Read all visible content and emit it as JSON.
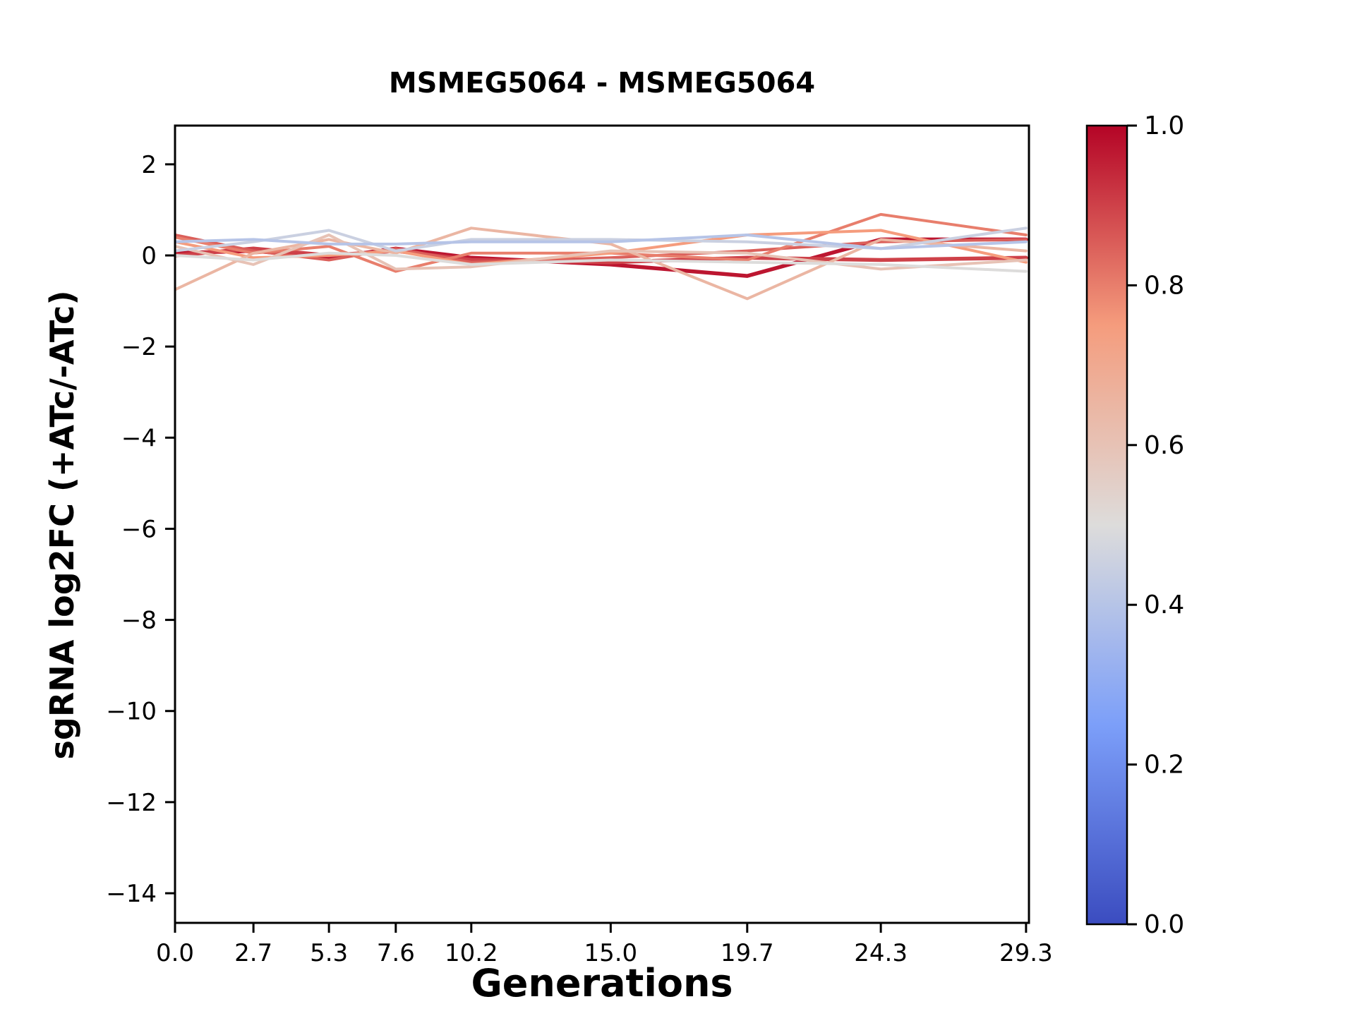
{
  "chart_data": {
    "type": "line",
    "title": "MSMEG5064 - MSMEG5064",
    "xlabel": "Generations",
    "ylabel": "sgRNA log2FC (+ATc/-ATc)",
    "x": [
      0.0,
      2.7,
      5.3,
      7.6,
      10.2,
      15.0,
      19.7,
      24.3,
      29.3
    ],
    "xtick_labels": [
      "0.0",
      "2.7",
      "5.3",
      "7.6",
      "10.2",
      "15.0",
      "19.7",
      "24.3",
      "29.3"
    ],
    "ytick_values": [
      2,
      0,
      -2,
      -4,
      -6,
      -8,
      -10,
      -12,
      -14
    ],
    "ytick_labels": [
      "2",
      "0",
      "−2",
      "−4",
      "−6",
      "−8",
      "−10",
      "−12",
      "−14"
    ],
    "xlim": [
      0,
      29.4
    ],
    "ylim": [
      -14.65,
      2.85
    ],
    "grid": false,
    "legend": "none",
    "series": [
      {
        "color_value": 0.97,
        "lw": 5.5,
        "values": [
          0.05,
          0.1,
          -0.05,
          0.15,
          -0.05,
          -0.2,
          -0.45,
          0.35,
          0.35
        ]
      },
      {
        "color_value": 0.9,
        "lw": 5.5,
        "values": [
          0.0,
          0.15,
          0.0,
          0.1,
          -0.1,
          -0.15,
          -0.05,
          -0.1,
          -0.05
        ]
      },
      {
        "color_value": 0.85,
        "lw": 4,
        "values": [
          0.45,
          0.1,
          -0.1,
          0.15,
          -0.15,
          -0.05,
          0.1,
          0.3,
          0.35
        ]
      },
      {
        "color_value": 0.8,
        "lw": 4,
        "values": [
          0.4,
          0.05,
          0.2,
          -0.35,
          0.05,
          0.05,
          -0.1,
          0.9,
          0.45
        ]
      },
      {
        "color_value": 0.75,
        "lw": 4,
        "values": [
          0.3,
          -0.05,
          0.0,
          0.1,
          -0.2,
          0.05,
          0.45,
          0.55,
          -0.15
        ]
      },
      {
        "color_value": 0.65,
        "lw": 4,
        "values": [
          -0.75,
          0.05,
          0.35,
          0.05,
          0.6,
          0.25,
          -0.95,
          0.35,
          0.1
        ]
      },
      {
        "color_value": 0.6,
        "lw": 4,
        "values": [
          0.2,
          -0.2,
          0.45,
          -0.3,
          -0.25,
          0.1,
          0.05,
          -0.3,
          -0.1
        ]
      },
      {
        "color_value": 0.5,
        "lw": 4,
        "values": [
          0.0,
          -0.1,
          0.05,
          0.0,
          -0.2,
          -0.1,
          -0.15,
          -0.2,
          -0.35
        ]
      },
      {
        "color_value": 0.45,
        "lw": 4,
        "values": [
          0.1,
          0.3,
          0.55,
          0.1,
          0.35,
          0.35,
          0.3,
          0.15,
          0.6
        ]
      },
      {
        "color_value": 0.4,
        "lw": 4,
        "values": [
          0.3,
          0.35,
          0.25,
          0.25,
          0.3,
          0.3,
          0.45,
          0.15,
          0.3
        ]
      }
    ],
    "colorbar": {
      "cmap": "coolwarm",
      "min": 0.0,
      "max": 1.0,
      "tick_values": [
        1.0,
        0.8,
        0.6,
        0.4,
        0.2,
        0.0
      ],
      "tick_labels": [
        "1.0",
        "0.8",
        "0.6",
        "0.4",
        "0.2",
        "0.0"
      ]
    },
    "colors": {
      "cool_end": "#3b4cc0",
      "mid": "#dddcdb",
      "warm_end": "#b40426",
      "axis": "#000000"
    }
  }
}
